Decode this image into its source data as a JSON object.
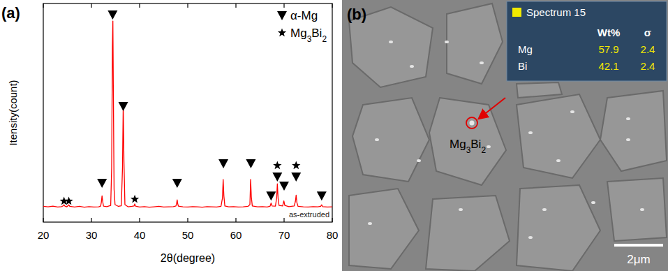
{
  "chart_data": {
    "type": "line",
    "title": "(a)",
    "x_label": "2θ(degree)",
    "y_label": "Itensity(count)",
    "annotations": [
      "as-extruded"
    ],
    "xlim": [
      20,
      80
    ],
    "xticks": [
      20,
      30,
      40,
      50,
      60,
      70,
      80
    ],
    "ylim": [
      0,
      100
    ],
    "tick_labels": "x",
    "grid": false,
    "legend": "upper right",
    "series": [
      {
        "type": "line",
        "color": "#ff0000",
        "x": [
          20,
          21,
          22,
          23,
          23.8,
          24.1,
          24.3,
          24.5,
          24.9,
          25.1,
          25.3,
          25.5,
          26.5,
          27.5,
          28.5,
          29.5,
          30.5,
          31.5,
          31.9,
          32.05,
          32.2,
          32.35,
          32.5,
          33.2,
          34.0,
          34.2,
          34.35,
          34.45,
          34.55,
          34.7,
          34.9,
          35.6,
          36.2,
          36.45,
          36.6,
          36.75,
          36.95,
          37.6,
          38.4,
          38.85,
          39.0,
          39.15,
          40,
          41,
          42,
          43,
          44,
          45,
          46,
          47,
          47.55,
          47.7,
          47.8,
          47.9,
          48.05,
          49,
          50,
          51,
          52,
          53,
          54,
          55,
          56,
          56.9,
          57.2,
          57.35,
          57.5,
          57.7,
          58.5,
          59.5,
          60.5,
          61.5,
          62.5,
          62.9,
          63.05,
          63.2,
          63.4,
          64.5,
          65.5,
          66.5,
          67.1,
          67.3,
          67.5,
          68.2,
          68.45,
          68.6,
          68.75,
          68.95,
          69.7,
          69.95,
          70.15,
          71,
          72.1,
          72.35,
          72.5,
          72.65,
          72.9,
          74,
          75,
          76,
          77,
          77.6,
          77.8,
          78.0,
          79,
          80
        ],
        "values": [
          7.2,
          7.0,
          7.3,
          6.9,
          7.1,
          7.4,
          7.9,
          7.3,
          7.0,
          7.4,
          7.9,
          7.2,
          6.9,
          7.2,
          6.8,
          7.1,
          6.9,
          7.0,
          7.3,
          9.0,
          12.0,
          9.2,
          7.3,
          7.1,
          7.6,
          25,
          80,
          92,
          60,
          15,
          8.0,
          7.2,
          7.5,
          25,
          54,
          28,
          8.0,
          7.0,
          7.2,
          7.4,
          8.3,
          7.3,
          6.9,
          7.1,
          6.8,
          7.0,
          7.2,
          6.9,
          7.0,
          7.1,
          7.4,
          8.8,
          10.2,
          8.6,
          7.3,
          7.0,
          6.9,
          7.1,
          7.0,
          6.8,
          7.1,
          7.0,
          6.9,
          7.2,
          11,
          19.5,
          12,
          7.4,
          7.0,
          7.1,
          6.9,
          7.0,
          7.2,
          8.0,
          19.5,
          11.5,
          7.4,
          7.0,
          7.1,
          6.9,
          7.3,
          8.7,
          7.4,
          7.3,
          11,
          17.5,
          11,
          7.6,
          7.4,
          9.7,
          7.6,
          7.1,
          7.4,
          9.5,
          12.3,
          9.0,
          7.2,
          7.0,
          6.9,
          7.1,
          7.0,
          7.2,
          7.9,
          7.1,
          6.9,
          7.0
        ]
      },
      {
        "name": "α-Mg",
        "type": "scatter",
        "marker": "triangle-down",
        "color": "#000000",
        "x": [
          32.2,
          34.4,
          36.6,
          47.8,
          57.4,
          63.1,
          67.3,
          68.6,
          70.0,
          72.5,
          77.8
        ],
        "values": [
          17.9,
          94.9,
          53.0,
          17.9,
          26.8,
          26.8,
          12.1,
          20.8,
          16.6,
          20.8,
          12.1
        ]
      },
      {
        "name": "Mg3Bi2",
        "type": "scatter",
        "marker": "star",
        "color": "#000000",
        "x": [
          24.3,
          25.3,
          39.0,
          68.6,
          72.5
        ],
        "values": [
          9.6,
          9.6,
          10.5,
          25.9,
          25.9
        ]
      }
    ]
  },
  "micrograph": {
    "panel_label": "(b)",
    "phase_label": "Mg3Bi2",
    "scale_bar": "2μm",
    "spectrum": {
      "title": "Spectrum 15",
      "columns": [
        "Wt%",
        "σ"
      ],
      "rows": [
        {
          "element": "Mg",
          "values": [
            57.9,
            2.4
          ]
        },
        {
          "element": "Bi",
          "values": [
            42.1,
            2.4
          ]
        }
      ]
    }
  }
}
